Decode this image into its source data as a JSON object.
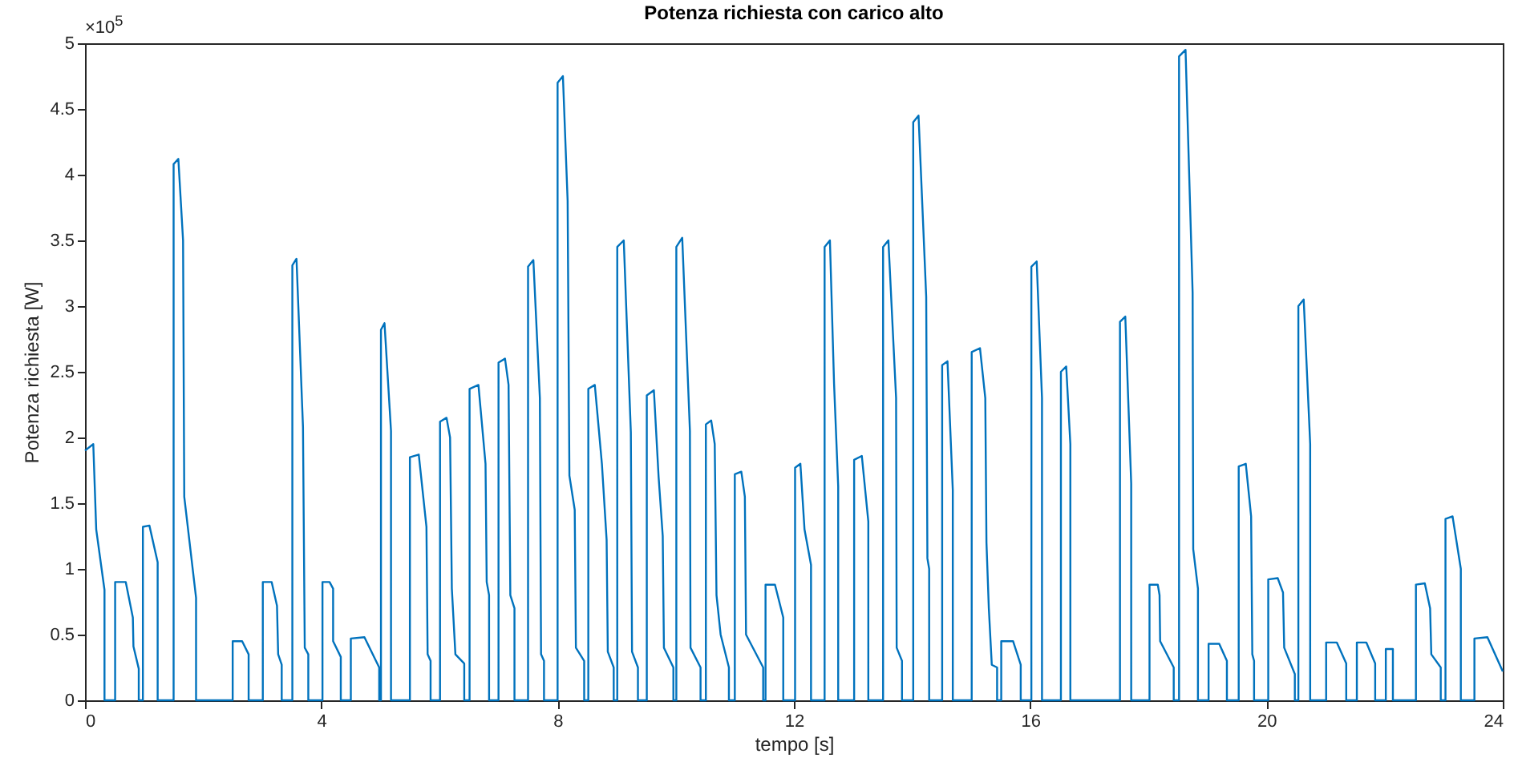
{
  "chart_data": {
    "type": "line",
    "title": "Potenza richiesta con carico alto",
    "xlabel": "tempo [s]",
    "ylabel": "Potenza richiesta [W]",
    "annotations": [
      "×10$^{5}$"
    ],
    "xlim": [
      0,
      24
    ],
    "xticks": [
      0,
      4,
      8,
      12,
      16,
      20,
      24
    ],
    "ylim": [
      0,
      5
    ],
    "yticks": [
      0,
      0.5,
      1,
      1.5,
      2,
      2.5,
      3,
      3.5,
      4,
      4.5,
      5
    ],
    "marker": "none",
    "line_style": "solid",
    "series": [
      {
        "color": "#0072bd",
        "x": [
          0,
          0.14,
          0.19,
          0.33,
          0.33,
          0.51,
          0.51,
          0.69,
          0.81,
          0.82,
          0.91,
          0.91,
          0.98,
          0.98,
          1.09,
          1.23,
          1.23,
          1.5,
          1.5,
          1.58,
          1.66,
          1.68,
          1.88,
          1.88,
          2.5,
          2.5,
          2.66,
          2.77,
          2.77,
          3.01,
          3.01,
          3.16,
          3.25,
          3.27,
          3.33,
          3.33,
          3.51,
          3.51,
          3.58,
          3.69,
          3.72,
          3.78,
          3.78,
          4.02,
          4.02,
          4.14,
          4.2,
          4.2,
          4.33,
          4.33,
          4.5,
          4.5,
          4.73,
          4.98,
          4.98,
          5.01,
          5.01,
          5.07,
          5.18,
          5.18,
          5.5,
          5.5,
          5.65,
          5.78,
          5.8,
          5.85,
          5.85,
          6.01,
          6.01,
          6.12,
          6.18,
          6.21,
          6.27,
          6.42,
          6.42,
          6.51,
          6.51,
          6.66,
          6.78,
          6.8,
          6.84,
          6.84,
          7.0,
          7.0,
          7.11,
          7.17,
          7.2,
          7.27,
          7.27,
          7.5,
          7.5,
          7.59,
          7.7,
          7.72,
          7.77,
          7.77,
          8.0,
          8.0,
          8.09,
          8.17,
          8.2,
          8.29,
          8.31,
          8.45,
          8.45,
          8.52,
          8.52,
          8.63,
          8.75,
          8.83,
          8.85,
          8.95,
          8.95,
          9.01,
          9.01,
          9.12,
          9.24,
          9.26,
          9.36,
          9.36,
          9.51,
          9.51,
          9.63,
          9.71,
          9.78,
          9.8,
          9.96,
          9.96,
          10.01,
          10.01,
          10.11,
          10.24,
          10.25,
          10.42,
          10.42,
          10.51,
          10.51,
          10.6,
          10.66,
          10.69,
          10.76,
          10.9,
          10.9,
          11.0,
          11.0,
          11.11,
          11.17,
          11.19,
          11.48,
          11.48,
          11.52,
          11.52,
          11.68,
          11.82,
          11.82,
          12.02,
          12.02,
          12.11,
          12.18,
          12.29,
          12.29,
          12.52,
          12.52,
          12.61,
          12.68,
          12.75,
          12.75,
          13.02,
          13.02,
          13.15,
          13.26,
          13.26,
          13.51,
          13.51,
          13.6,
          13.73,
          13.74,
          13.83,
          13.83,
          14.02,
          14.02,
          14.11,
          14.24,
          14.26,
          14.29,
          14.29,
          14.51,
          14.51,
          14.6,
          14.69,
          14.69,
          15.01,
          15.01,
          15.15,
          15.24,
          15.26,
          15.3,
          15.35,
          15.44,
          15.44,
          15.51,
          15.51,
          15.71,
          15.84,
          15.84,
          16.02,
          16.02,
          16.11,
          16.2,
          16.2,
          16.52,
          16.52,
          16.61,
          16.68,
          16.68,
          17.52,
          17.52,
          17.61,
          17.71,
          17.71,
          18.02,
          18.02,
          18.16,
          18.19,
          18.2,
          18.43,
          18.43,
          18.52,
          18.52,
          18.63,
          18.75,
          18.76,
          18.84,
          18.84,
          19.02,
          19.02,
          19.2,
          19.33,
          19.33,
          19.53,
          19.53,
          19.65,
          19.74,
          19.76,
          19.79,
          19.79,
          20.03,
          20.03,
          20.19,
          20.28,
          20.3,
          20.48,
          20.48,
          20.54,
          20.54,
          20.63,
          20.74,
          20.74,
          21.01,
          21.01,
          21.19,
          21.35,
          21.35,
          21.53,
          21.53,
          21.69,
          21.84,
          21.84,
          22.02,
          22.02,
          22.14,
          22.14,
          22.53,
          22.53,
          22.68,
          22.77,
          22.79,
          22.95,
          22.95,
          23.03,
          23.03,
          23.15,
          23.29,
          23.29,
          23.52,
          23.52,
          23.74,
          24
        ],
        "values": [
          1.9,
          1.95,
          1.3,
          0.84,
          0,
          0,
          0.9,
          0.9,
          0.63,
          0.41,
          0.24,
          0,
          0,
          1.32,
          1.33,
          1.05,
          0,
          0,
          4.08,
          4.12,
          3.5,
          1.55,
          0.78,
          0,
          0,
          0.45,
          0.45,
          0.35,
          0,
          0,
          0.9,
          0.9,
          0.72,
          0.35,
          0.27,
          0,
          0,
          3.31,
          3.36,
          2.08,
          0.4,
          0.35,
          0,
          0,
          0.9,
          0.9,
          0.85,
          0.45,
          0.33,
          0,
          0,
          0.47,
          0.48,
          0.25,
          0,
          0,
          2.82,
          2.87,
          2.05,
          0,
          0,
          1.85,
          1.87,
          1.32,
          0.35,
          0.3,
          0,
          0,
          2.12,
          2.15,
          2,
          0.85,
          0.35,
          0.28,
          0,
          0,
          2.37,
          2.4,
          1.8,
          0.9,
          0.8,
          0,
          0,
          2.57,
          2.6,
          2.4,
          0.8,
          0.7,
          0,
          0,
          3.3,
          3.35,
          2.3,
          0.35,
          0.3,
          0,
          0,
          4.7,
          4.75,
          3.8,
          1.71,
          1.45,
          0.4,
          0.3,
          0,
          0,
          2.37,
          2.4,
          1.8,
          1.22,
          0.37,
          0.25,
          0,
          0,
          3.45,
          3.5,
          2.04,
          0.37,
          0.25,
          0,
          0,
          2.32,
          2.36,
          1.7,
          1.25,
          0.4,
          0.25,
          0,
          0,
          3.45,
          3.52,
          2.05,
          0.4,
          0.25,
          0,
          0,
          2.1,
          2.13,
          1.95,
          0.8,
          0.5,
          0.25,
          0,
          0,
          1.72,
          1.74,
          1.55,
          0.5,
          0.25,
          0,
          0,
          0.88,
          0.88,
          0.63,
          0,
          0,
          1.77,
          1.8,
          1.3,
          1.03,
          0,
          0,
          3.45,
          3.5,
          2.41,
          1.63,
          0,
          0,
          1.83,
          1.86,
          1.36,
          0,
          0,
          3.45,
          3.5,
          2.3,
          0.4,
          0.3,
          0,
          0,
          4.4,
          4.45,
          3.07,
          1.08,
          1,
          0,
          0,
          2.55,
          2.58,
          1.6,
          0,
          0,
          2.65,
          2.68,
          2.3,
          1.2,
          0.7,
          0.27,
          0.25,
          0,
          0,
          0.45,
          0.45,
          0.27,
          0,
          0,
          3.3,
          3.34,
          2.3,
          0,
          0,
          2.5,
          2.54,
          1.95,
          0,
          0,
          2.88,
          2.92,
          1.65,
          0,
          0,
          0.88,
          0.88,
          0.8,
          0.45,
          0.25,
          0,
          0,
          4.9,
          4.95,
          3.1,
          1.15,
          0.85,
          0,
          0,
          0.43,
          0.43,
          0.3,
          0,
          0,
          1.78,
          1.8,
          1.4,
          0.35,
          0.3,
          0,
          0,
          0.92,
          0.93,
          0.82,
          0.4,
          0.2,
          0,
          0,
          3,
          3.05,
          1.95,
          0,
          0,
          0.44,
          0.44,
          0.28,
          0,
          0,
          0.44,
          0.44,
          0.28,
          0,
          0,
          0.39,
          0.39,
          0,
          0,
          0.88,
          0.89,
          0.7,
          0.35,
          0.25,
          0,
          0,
          1.38,
          1.4,
          1,
          0,
          0,
          0.47,
          0.48,
          0.22
        ]
      }
    ]
  }
}
